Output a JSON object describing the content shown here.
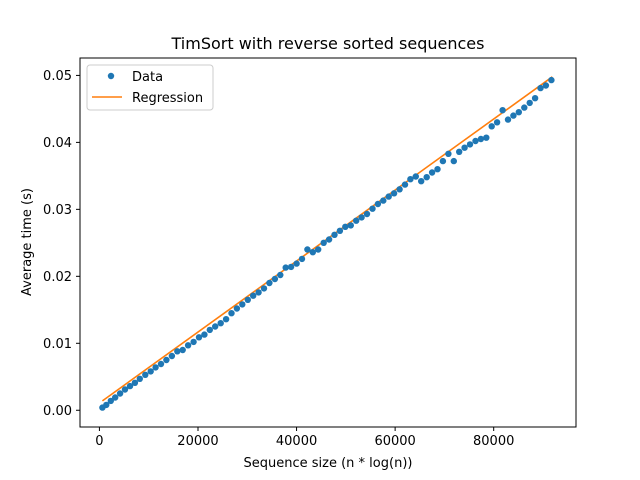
{
  "chart_data": {
    "type": "scatter",
    "title": "TimSort with reverse sorted sequences",
    "xlabel": "Sequence size (n * log(n))",
    "ylabel": "Average time (s)",
    "xlim": [
      -3940,
      96700
    ],
    "ylim": [
      -0.0025,
      0.0526
    ],
    "xticks": [
      0,
      20000,
      40000,
      60000,
      80000
    ],
    "xtick_labels": [
      "0",
      "20000",
      "40000",
      "60000",
      "80000"
    ],
    "yticks": [
      0.0,
      0.01,
      0.02,
      0.03,
      0.04,
      0.05
    ],
    "ytick_labels": [
      "0.00",
      "0.01",
      "0.02",
      "0.03",
      "0.04",
      "0.05"
    ],
    "grid": false,
    "legend": {
      "position": "upper-left",
      "entries": [
        "Data",
        "Regression"
      ]
    },
    "series": [
      {
        "name": "Data",
        "kind": "scatter",
        "color": "#1f77b4",
        "x": [
          600,
          1400,
          2300,
          3200,
          4200,
          5200,
          6200,
          7200,
          8200,
          9300,
          10400,
          11400,
          12500,
          13600,
          14700,
          15800,
          16900,
          18000,
          19100,
          20200,
          21300,
          22400,
          23500,
          24600,
          25700,
          26800,
          27900,
          29000,
          30100,
          31200,
          32300,
          33400,
          34500,
          35600,
          36700,
          37800,
          38900,
          40000,
          41100,
          42200,
          43300,
          44400,
          45500,
          46600,
          47700,
          48800,
          49900,
          51000,
          52100,
          53200,
          54300,
          55400,
          56500,
          57600,
          58700,
          59800,
          60900,
          62000,
          63100,
          64200,
          65300,
          66400,
          67500,
          68600,
          69700,
          70800,
          71900,
          73000,
          74100,
          75200,
          76300,
          77400,
          78500,
          79600,
          80700,
          81800,
          82900,
          84000,
          85100,
          86200,
          87300,
          88400,
          89500,
          90600,
          91700
        ],
        "y": [
          0.0004,
          0.0008,
          0.0014,
          0.0019,
          0.0025,
          0.0031,
          0.0036,
          0.0041,
          0.0047,
          0.0053,
          0.0058,
          0.0064,
          0.0069,
          0.0075,
          0.0081,
          0.0088,
          0.009,
          0.0097,
          0.0102,
          0.0109,
          0.0113,
          0.012,
          0.0125,
          0.013,
          0.0136,
          0.0145,
          0.0152,
          0.0158,
          0.0165,
          0.0171,
          0.0176,
          0.0182,
          0.019,
          0.0196,
          0.0202,
          0.0213,
          0.0214,
          0.0219,
          0.0226,
          0.024,
          0.0236,
          0.024,
          0.025,
          0.0255,
          0.0262,
          0.0268,
          0.0274,
          0.0276,
          0.0283,
          0.0288,
          0.0293,
          0.0301,
          0.0308,
          0.0313,
          0.0319,
          0.0324,
          0.033,
          0.0337,
          0.0345,
          0.0349,
          0.0342,
          0.0348,
          0.0355,
          0.036,
          0.0372,
          0.0383,
          0.0372,
          0.0386,
          0.0392,
          0.0397,
          0.0402,
          0.0405,
          0.0407,
          0.0424,
          0.043,
          0.0448,
          0.0434,
          0.044,
          0.0445,
          0.0452,
          0.0459,
          0.0466,
          0.0481,
          0.0485,
          0.0493
        ]
      },
      {
        "name": "Regression",
        "kind": "line",
        "color": "#ff7f0e",
        "x": [
          600,
          91900
        ],
        "y": [
          0.0014,
          0.0498
        ]
      }
    ]
  }
}
